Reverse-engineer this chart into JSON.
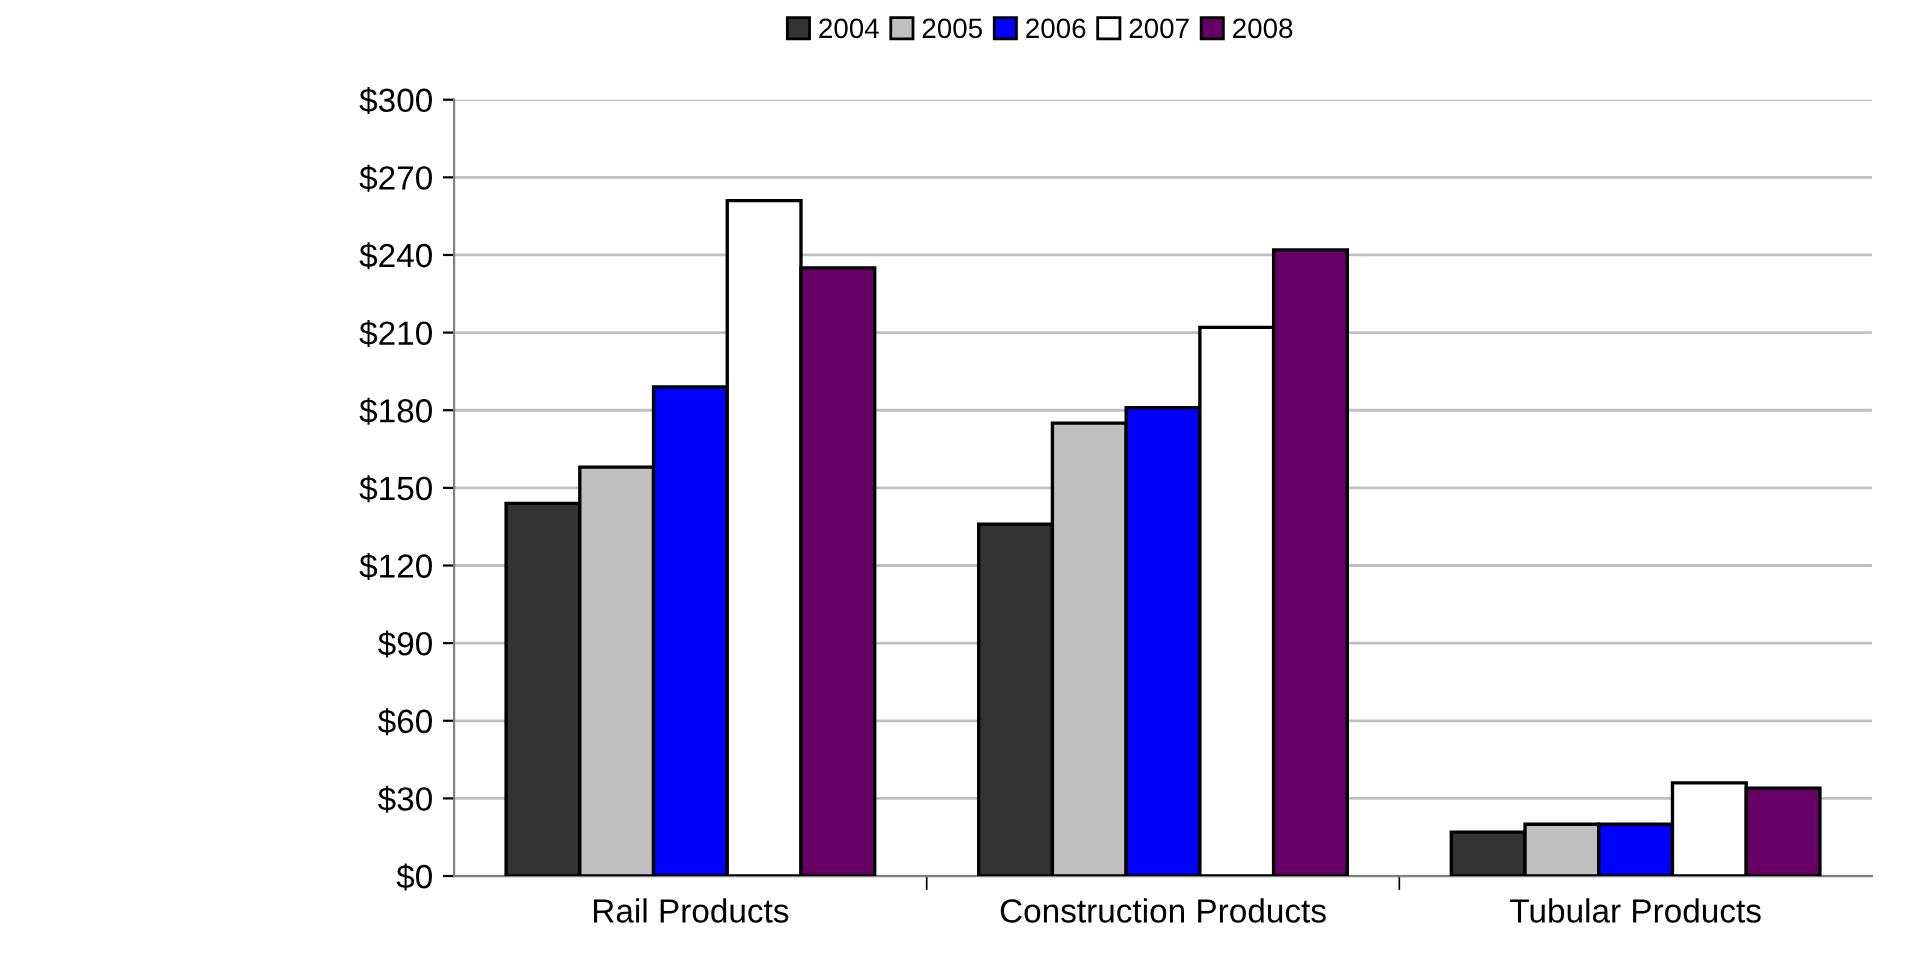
{
  "chart_data": {
    "type": "bar",
    "categories": [
      "Rail Products",
      "Construction Products",
      "Tubular Products"
    ],
    "series": [
      {
        "name": "2004",
        "color": "#333333",
        "values": [
          144,
          136,
          17
        ]
      },
      {
        "name": "2005",
        "color": "#c0c0c0",
        "values": [
          158,
          175,
          20
        ]
      },
      {
        "name": "2006",
        "color": "#0000ff",
        "values": [
          189,
          181,
          20
        ]
      },
      {
        "name": "2007",
        "color": "#ffffff",
        "values": [
          261,
          212,
          36
        ]
      },
      {
        "name": "2008",
        "color": "#660066",
        "values": [
          235,
          242,
          34
        ]
      }
    ],
    "ylim": [
      0,
      300
    ],
    "yticks": [
      {
        "value": 0,
        "label": "$0"
      },
      {
        "value": 30,
        "label": "$30"
      },
      {
        "value": 60,
        "label": "$60"
      },
      {
        "value": 90,
        "label": "$90"
      },
      {
        "value": 120,
        "label": "$120"
      },
      {
        "value": 150,
        "label": "$150"
      },
      {
        "value": 180,
        "label": "$180"
      },
      {
        "value": 210,
        "label": "$210"
      },
      {
        "value": 240,
        "label": "$240"
      },
      {
        "value": 270,
        "label": "$270"
      },
      {
        "value": 300,
        "label": "$300"
      }
    ],
    "grid": "y",
    "legend": "top"
  }
}
